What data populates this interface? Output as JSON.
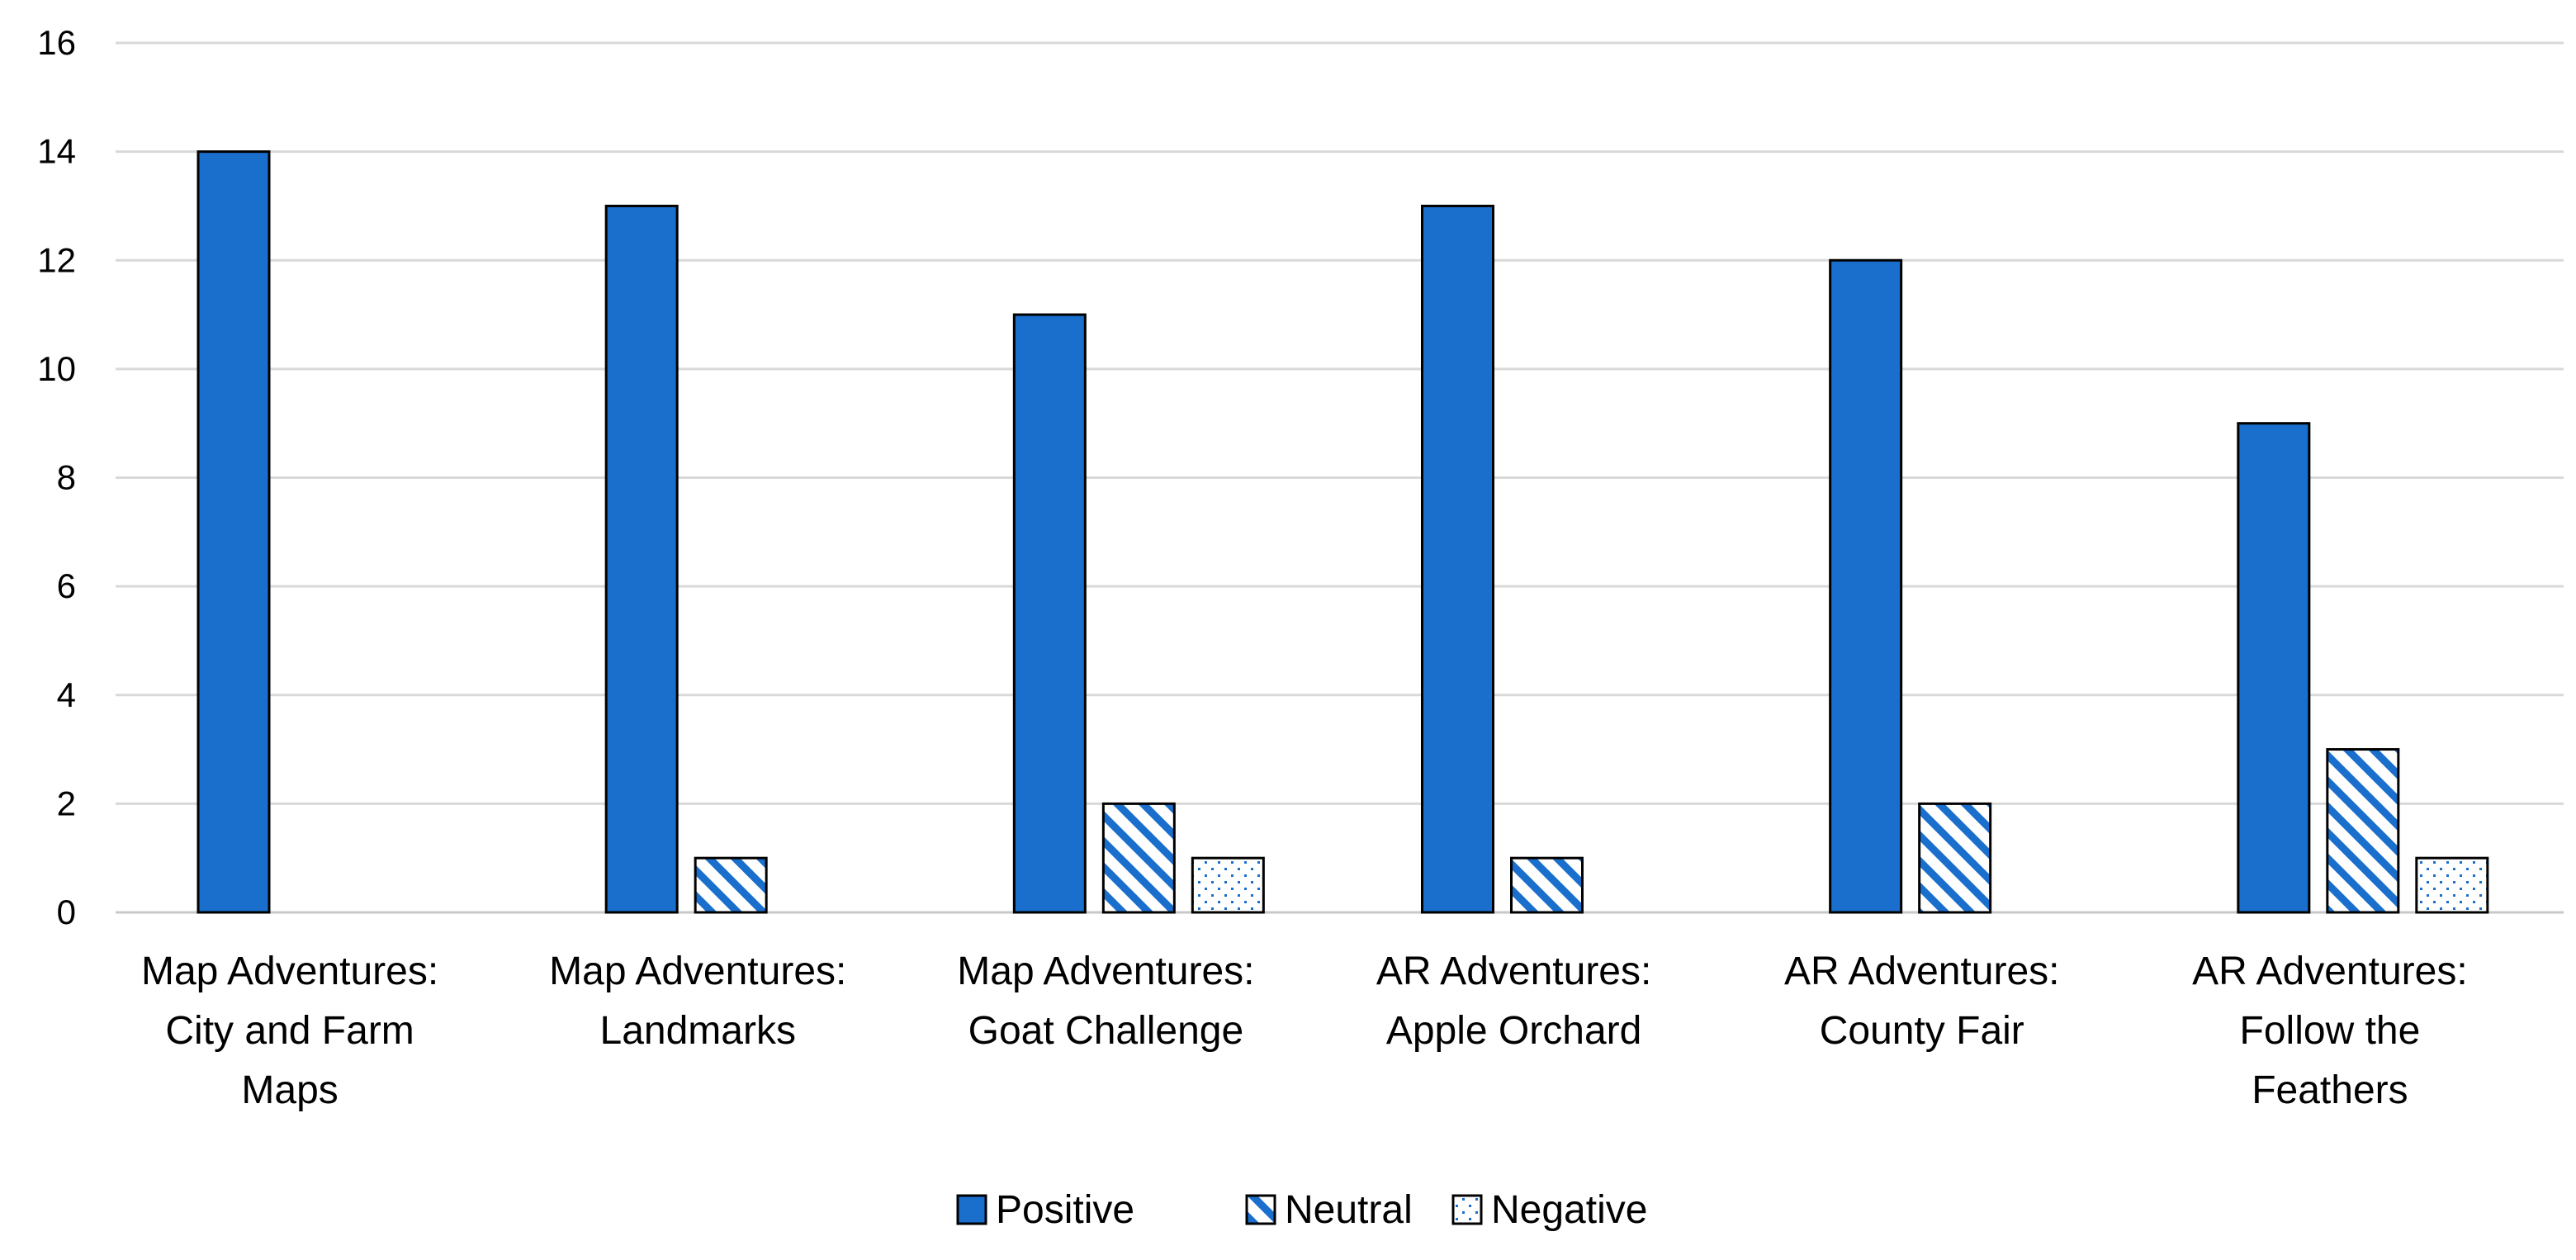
{
  "chart_data": {
    "type": "bar",
    "title": "",
    "xlabel": "",
    "ylabel": "",
    "ylim": [
      0,
      16
    ],
    "yticks": [
      0,
      2,
      4,
      6,
      8,
      10,
      12,
      14,
      16
    ],
    "grid": true,
    "legend_position": "bottom",
    "categories": [
      [
        "Map Adventures:",
        "City and Farm",
        "Maps"
      ],
      [
        "Map Adventures:",
        "Landmarks"
      ],
      [
        "Map Adventures:",
        "Goat Challenge"
      ],
      [
        "AR Adventures:",
        "Apple Orchard"
      ],
      [
        "AR Adventures:",
        "County Fair"
      ],
      [
        "AR Adventures:",
        "Follow the",
        "Feathers"
      ]
    ],
    "series": [
      {
        "name": "Positive",
        "values": [
          14,
          13,
          11,
          13,
          12,
          9
        ],
        "fill": "solid",
        "color": "#1a6fcc"
      },
      {
        "name": "Neutral",
        "values": [
          0,
          1,
          2,
          1,
          2,
          3
        ],
        "fill": "diagonal-stripes",
        "color": "#1a6fcc"
      },
      {
        "name": "Negative",
        "values": [
          0,
          0,
          1,
          0,
          0,
          1
        ],
        "fill": "dots",
        "color": "#1a6fcc"
      }
    ]
  }
}
